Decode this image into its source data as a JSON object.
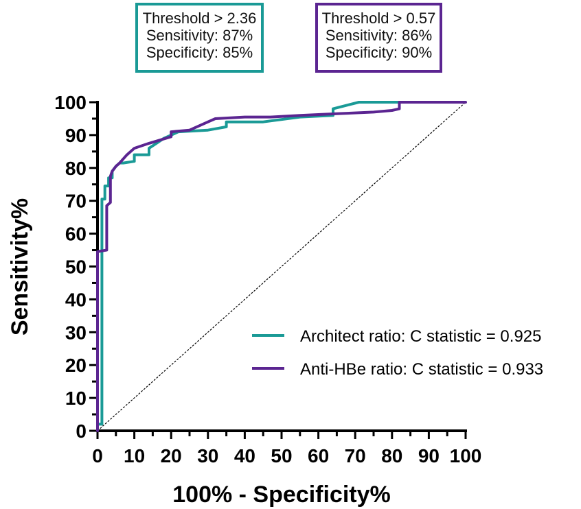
{
  "annotations": [
    {
      "id": "architect",
      "color": "#1a9a96",
      "lines": [
        "Threshold > 2.36",
        "Sensitivity: 87%",
        "Specificity: 85%"
      ]
    },
    {
      "id": "antihbe",
      "color": "#5b2591",
      "lines": [
        "Threshold > 0.57",
        "Sensitivity: 86%",
        "Specificity: 90%"
      ]
    }
  ],
  "chart_data": {
    "type": "line",
    "xlabel": "100% - Specificity%",
    "ylabel": "Sensitivity%",
    "xlim": [
      0,
      100
    ],
    "ylim": [
      0,
      100
    ],
    "x_ticks": [
      "0",
      "10",
      "20",
      "30",
      "40",
      "50",
      "60",
      "70",
      "80",
      "90",
      "100"
    ],
    "y_ticks": [
      "0",
      "10",
      "20",
      "30",
      "40",
      "50",
      "60",
      "70",
      "80",
      "90",
      "100"
    ],
    "grid": false,
    "legend_position": "lower-right",
    "reference_line": {
      "x": [
        0,
        100
      ],
      "y": [
        0,
        100
      ],
      "style": "dashed"
    },
    "series": [
      {
        "name": "Architect ratio: C statistic = 0.925",
        "color": "#1a9a96",
        "x": [
          0,
          1.2,
          1.2,
          2,
          2,
          3,
          3,
          4,
          4,
          5,
          6,
          7,
          10,
          10,
          14,
          14,
          16,
          18,
          20,
          22,
          30,
          35,
          35,
          45,
          55,
          64,
          64,
          71,
          82
        ],
        "y": [
          2,
          2,
          70.5,
          70.5,
          74.5,
          74.5,
          77,
          77,
          79,
          80.5,
          81.5,
          81.5,
          82,
          84,
          84,
          86,
          87.5,
          89,
          90,
          91,
          91.5,
          92.5,
          94,
          94,
          95.5,
          96,
          98,
          100,
          100
        ]
      },
      {
        "name": "Anti-HBe ratio: C statistic = 0.933",
        "color": "#5b2591",
        "x": [
          0,
          0,
          2.5,
          2.5,
          3.5,
          3.5,
          4,
          5,
          6,
          8,
          10,
          14,
          20,
          20,
          25,
          30,
          32,
          40,
          47,
          55,
          65,
          75,
          80,
          82,
          82,
          97,
          100
        ],
        "y": [
          0,
          54.5,
          55,
          68.5,
          69.5,
          77.5,
          79,
          80.5,
          81.5,
          84,
          86,
          87.5,
          89.5,
          91,
          91.5,
          94,
          95,
          95.5,
          95.5,
          96,
          96.5,
          97,
          97.5,
          98,
          100,
          100,
          100
        ]
      }
    ]
  }
}
